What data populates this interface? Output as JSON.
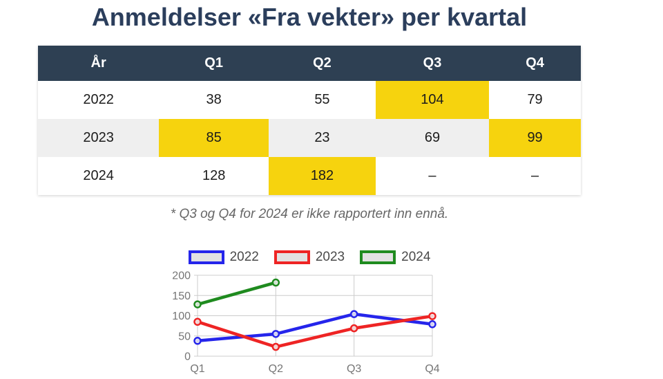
{
  "title": "Anmeldelser «Fra vekter» per kvartal",
  "footnote": "* Q3 og Q4 for 2024 er ikke rapportert inn ennå.",
  "colors": {
    "title": "#2b3e5c",
    "table_header_bg": "#2e4053",
    "table_stripe_bg": "#efefef",
    "highlight_yellow": "#f6d30e",
    "axis_text": "#757575",
    "grid": "#cccccc"
  },
  "table": {
    "columns": [
      "År",
      "Q1",
      "Q2",
      "Q3",
      "Q4"
    ],
    "rows": [
      {
        "year": "2022",
        "values": [
          "38",
          "55",
          "104",
          "79"
        ],
        "highlights": [
          false,
          false,
          true,
          false
        ]
      },
      {
        "year": "2023",
        "values": [
          "85",
          "23",
          "69",
          "99"
        ],
        "highlights": [
          true,
          false,
          false,
          true
        ]
      },
      {
        "year": "2024",
        "values": [
          "128",
          "182",
          "–",
          "–"
        ],
        "highlights": [
          false,
          true,
          false,
          false
        ]
      }
    ]
  },
  "chart_data": {
    "type": "line",
    "categories": [
      "Q1",
      "Q2",
      "Q3",
      "Q4"
    ],
    "series": [
      {
        "name": "2022",
        "color": "#2525eb",
        "values": [
          38,
          55,
          104,
          79
        ]
      },
      {
        "name": "2023",
        "color": "#ee2424",
        "values": [
          85,
          23,
          69,
          99
        ]
      },
      {
        "name": "2024",
        "color": "#1f8b1f",
        "values": [
          128,
          182,
          null,
          null
        ]
      }
    ],
    "title": "",
    "xlabel": "",
    "ylabel": "",
    "ylim": [
      0,
      200
    ],
    "yticks": [
      0,
      50,
      100,
      150,
      200
    ],
    "grid": true,
    "legend_position": "top",
    "marker": "open-circle"
  }
}
